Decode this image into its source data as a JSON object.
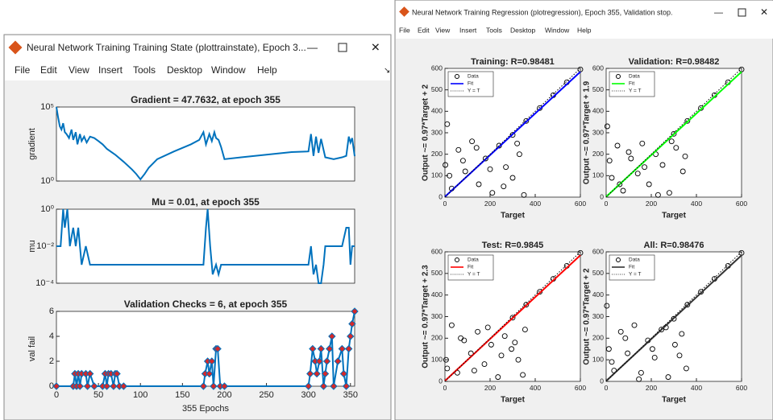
{
  "windows": [
    {
      "title": "Neural Network Training Training State (plottrainstate), Epoch 3...",
      "menu": [
        "File",
        "Edit",
        "View",
        "Insert",
        "Tools",
        "Desktop",
        "Window",
        "Help"
      ],
      "charts": [
        {
          "type": "line",
          "title": "Gradient = 47.7632, at epoch 355",
          "ylabel": "gradient",
          "log": true,
          "color": "#0072bd",
          "xlim": [
            0,
            355
          ],
          "ylim": [
            1,
            100000
          ],
          "yticks": [
            {
              "value": 1,
              "label": "10⁰"
            },
            {
              "value": 100000,
              "label": "10⁵"
            }
          ],
          "x": [
            0,
            2,
            4,
            6,
            8,
            10,
            12,
            15,
            18,
            20,
            23,
            25,
            28,
            30,
            33,
            36,
            40,
            45,
            50,
            55,
            60,
            70,
            80,
            90,
            95,
            100,
            105,
            110,
            120,
            140,
            160,
            170,
            175,
            178,
            182,
            185,
            188,
            190,
            193,
            196,
            200,
            220,
            250,
            280,
            300,
            303,
            306,
            309,
            312,
            315,
            320,
            330,
            340,
            345,
            348,
            350,
            352,
            355
          ],
          "values": [
            100000,
            20000,
            5000,
            3000,
            8000,
            2000,
            1500,
            800,
            3000,
            600,
            2000,
            300,
            1500,
            500,
            1000,
            400,
            1000,
            800,
            500,
            300,
            150,
            60,
            20,
            6,
            3,
            1.3,
            3,
            8,
            30,
            100,
            300,
            600,
            2000,
            300,
            1500,
            500,
            2000,
            800,
            600,
            200,
            30,
            40,
            60,
            90,
            100,
            1500,
            50,
            1000,
            80,
            700,
            40,
            30,
            40,
            50,
            1000,
            400,
            800,
            47.7632
          ]
        },
        {
          "type": "line",
          "title": "Mu = 0.01, at epoch 355",
          "ylabel": "mu",
          "log": true,
          "color": "#0072bd",
          "xlim": [
            0,
            355
          ],
          "ylim": [
            0.0001,
            1
          ],
          "yticks": [
            {
              "value": 0.0001,
              "label": "10⁻⁴"
            },
            {
              "value": 0.01,
              "label": "10⁻²"
            },
            {
              "value": 1,
              "label": "10⁰"
            }
          ],
          "x": [
            0,
            5,
            8,
            10,
            13,
            16,
            20,
            23,
            26,
            30,
            35,
            40,
            175,
            178,
            180,
            183,
            186,
            190,
            193,
            196,
            300,
            303,
            306,
            309,
            312,
            315,
            318,
            320,
            340,
            345,
            348,
            350,
            352,
            355
          ],
          "values": [
            0.01,
            0.01,
            1,
            0.1,
            1,
            0.01,
            0.1,
            0.01,
            0.1,
            0.001,
            0.01,
            0.001,
            0.001,
            0.1,
            1,
            0.01,
            0.0003,
            0.001,
            0.0003,
            0.001,
            0.001,
            0.01,
            0.0003,
            0.001,
            0.0001,
            0.0001,
            0.001,
            0.01,
            0.01,
            0.1,
            0.1,
            0.001,
            0.01,
            0.01
          ]
        },
        {
          "type": "line",
          "title": "Validation Checks = 6, at epoch 355",
          "ylabel": "val fail",
          "xlabel": "355 Epochs",
          "color": "#0072bd",
          "marker_color": "#d62728",
          "xlim": [
            0,
            355
          ],
          "ylim": [
            0,
            6
          ],
          "yticks": [
            0,
            2,
            4,
            6
          ],
          "xticks": [
            0,
            50,
            100,
            150,
            200,
            250,
            300,
            350
          ],
          "x": [
            0,
            20,
            22,
            24,
            26,
            28,
            30,
            35,
            37,
            40,
            45,
            55,
            58,
            60,
            62,
            65,
            68,
            70,
            72,
            75,
            80,
            175,
            177,
            180,
            182,
            185,
            187,
            190,
            192,
            195,
            200,
            300,
            302,
            305,
            308,
            310,
            313,
            315,
            318,
            320,
            322,
            325,
            328,
            330,
            335,
            340,
            342,
            345,
            348,
            350,
            352,
            355
          ],
          "values": [
            0,
            0,
            1,
            0,
            1,
            0,
            1,
            1,
            0,
            1,
            0,
            0,
            1,
            0,
            1,
            1,
            0,
            1,
            1,
            0,
            0,
            0,
            1,
            2,
            1,
            2,
            0,
            3,
            3,
            0,
            0,
            0,
            1,
            3,
            2,
            1,
            2,
            3,
            0,
            1,
            2,
            3,
            4,
            0,
            2,
            3,
            1,
            0,
            3,
            4,
            5,
            6
          ]
        }
      ]
    },
    {
      "title": "Neural Network Training Regression (plotregression), Epoch 355, Validation stop.",
      "menu": [
        "File",
        "Edit",
        "View",
        "Insert",
        "Tools",
        "Desktop",
        "Window",
        "Help"
      ],
      "charts": [
        {
          "type": "scatter",
          "title": "Training: R=0.98481",
          "xlabel": "Target",
          "ylabel": "Output ~= 0.97*Target + 2",
          "legend": "northwest",
          "xlim": [
            0,
            600
          ],
          "ylim": [
            0,
            600
          ],
          "xticks": [
            0,
            200,
            400,
            600
          ],
          "yticks": [
            0,
            100,
            200,
            300,
            400,
            500,
            600
          ],
          "series": [
            {
              "name": "Data",
              "color": "#000000",
              "style": "markers",
              "x": [
                2,
                10,
                30,
                60,
                90,
                120,
                150,
                180,
                210,
                240,
                270,
                300,
                330,
                350,
                20,
                80,
                140,
                200,
                260,
                320,
                300,
                360,
                420,
                480,
                540,
                600
              ],
              "values": [
                150,
                340,
                40,
                220,
                120,
                260,
                60,
                180,
                20,
                240,
                140,
                90,
                200,
                10,
                100,
                170,
                230,
                130,
                50,
                250,
                290,
                355,
                415,
                475,
                535,
                595
              ]
            },
            {
              "name": "Fit",
              "color": "#0000ff",
              "style": "solid",
              "x": [
                0,
                600
              ],
              "values": [
                2,
                584
              ]
            },
            {
              "name": "Y = T",
              "color": "#000000",
              "style": "dotted",
              "x": [
                0,
                600
              ],
              "values": [
                0,
                600
              ]
            }
          ]
        },
        {
          "type": "scatter",
          "title": "Validation: R=0.98482",
          "xlabel": "Target",
          "ylabel": "Output ~= 0.97*Target + 1.9",
          "legend": "northwest",
          "xlim": [
            0,
            600
          ],
          "ylim": [
            0,
            600
          ],
          "xticks": [
            0,
            200,
            400,
            600
          ],
          "yticks": [
            0,
            100,
            200,
            300,
            400,
            500,
            600
          ],
          "series": [
            {
              "name": "Data",
              "color": "#000000",
              "style": "markers",
              "x": [
                5,
                25,
                50,
                75,
                110,
                140,
                160,
                190,
                220,
                250,
                280,
                310,
                340,
                15,
                60,
                100,
                170,
                230,
                290,
                350,
                300,
                360,
                420,
                480,
                540,
                600
              ],
              "values": [
                330,
                90,
                240,
                30,
                180,
                110,
                250,
                60,
                200,
                150,
                20,
                230,
                120,
                170,
                60,
                210,
                140,
                10,
                260,
                190,
                295,
                355,
                415,
                475,
                535,
                595
              ]
            },
            {
              "name": "Fit",
              "color": "#00ff00",
              "style": "solid",
              "x": [
                0,
                600
              ],
              "values": [
                1.9,
                583.9
              ]
            },
            {
              "name": "Y = T",
              "color": "#000000",
              "style": "dotted",
              "x": [
                0,
                600
              ],
              "values": [
                0,
                600
              ]
            }
          ]
        },
        {
          "type": "scatter",
          "title": "Test: R=0.9845",
          "xlabel": "Target",
          "ylabel": "Output ~= 0.97*Target + 2.3",
          "legend": "northwest",
          "xlim": [
            0,
            600
          ],
          "ylim": [
            0,
            600
          ],
          "xticks": [
            0,
            200,
            400,
            600
          ],
          "yticks": [
            0,
            100,
            200,
            300,
            400,
            500,
            600
          ],
          "series": [
            {
              "name": "Data",
              "color": "#000000",
              "style": "markers",
              "x": [
                5,
                30,
                55,
                85,
                115,
                145,
                175,
                205,
                235,
                265,
                295,
                325,
                355,
                10,
                70,
                130,
                190,
                250,
                310,
                345,
                300,
                360,
                420,
                480,
                540,
                600
              ],
              "values": [
                100,
                260,
                40,
                190,
                130,
                230,
                80,
                170,
                20,
                210,
                150,
                100,
                240,
                60,
                200,
                50,
                250,
                120,
                180,
                30,
                295,
                355,
                415,
                475,
                535,
                595
              ]
            },
            {
              "name": "Fit",
              "color": "#ff0000",
              "style": "solid",
              "x": [
                0,
                600
              ],
              "values": [
                2.3,
                584.3
              ]
            },
            {
              "name": "Y = T",
              "color": "#000000",
              "style": "dotted",
              "x": [
                0,
                600
              ],
              "values": [
                0,
                600
              ]
            }
          ]
        },
        {
          "type": "scatter",
          "title": "All: R=0.98476",
          "xlabel": "Target",
          "ylabel": "Output ~= 0.97*Target + 2",
          "legend": "northwest",
          "xlim": [
            0,
            600
          ],
          "ylim": [
            0,
            600
          ],
          "xticks": [
            0,
            200,
            400,
            600
          ],
          "yticks": [
            0,
            100,
            200,
            300,
            400,
            500,
            600
          ],
          "series": [
            {
              "name": "Data",
              "color": "#000000",
              "style": "markers",
              "x": [
                3,
                12,
                35,
                65,
                95,
                125,
                155,
                185,
                215,
                245,
                275,
                305,
                335,
                355,
                25,
                85,
                145,
                205,
                265,
                325,
                300,
                360,
                420,
                480,
                540,
                600
              ],
              "values": [
                350,
                150,
                50,
                230,
                130,
                260,
                40,
                190,
                110,
                240,
                20,
                170,
                220,
                60,
                90,
                200,
                10,
                150,
                250,
                120,
                290,
                355,
                415,
                475,
                535,
                595
              ]
            },
            {
              "name": "Fit",
              "color": "#333333",
              "style": "solid",
              "x": [
                0,
                600
              ],
              "values": [
                2,
                584
              ]
            },
            {
              "name": "Y = T",
              "color": "#000000",
              "style": "dotted",
              "x": [
                0,
                600
              ],
              "values": [
                0,
                600
              ]
            }
          ]
        }
      ]
    }
  ]
}
